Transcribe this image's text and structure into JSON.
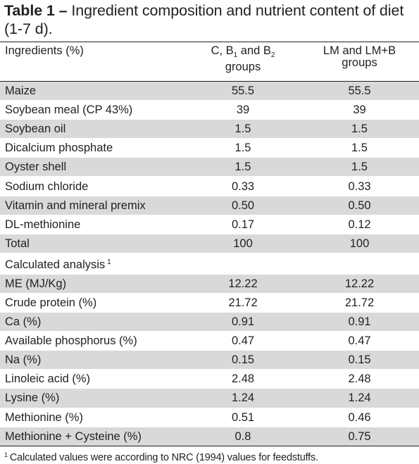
{
  "table": {
    "label": "Table 1 –",
    "caption": "Ingredient composition and nutrient content of diet (1-7 d).",
    "headers": {
      "col1": "Ingredients (%)",
      "col2_pre": "C, B",
      "col2_sub1": "1",
      "col2_mid": " and B",
      "col2_sub2": "2",
      "col2_post": "groups",
      "col3_line1": "LM and LM+B",
      "col3_line2": "groups"
    },
    "rows": [
      {
        "label": "Maize",
        "c": "55.5",
        "lm": "55.5"
      },
      {
        "label": "Soybean meal (CP 43%)",
        "c": "39",
        "lm": "39"
      },
      {
        "label": "Soybean oil",
        "c": "1.5",
        "lm": "1.5"
      },
      {
        "label": "Dicalcium phosphate",
        "c": "1.5",
        "lm": "1.5"
      },
      {
        "label": "Oyster shell",
        "c": "1.5",
        "lm": "1.5"
      },
      {
        "label": "Sodium chloride",
        "c": "0.33",
        "lm": "0.33"
      },
      {
        "label": "Vitamin and mineral premix",
        "c": "0.50",
        "lm": "0.50"
      },
      {
        "label": "DL-methionine",
        "c": "0.17",
        "lm": "0.12"
      },
      {
        "label": "Total",
        "c": "100",
        "lm": "100"
      },
      {
        "label": "Calculated analysis",
        "footnote": "1",
        "c": "",
        "lm": ""
      },
      {
        "label": "ME (MJ/Kg)",
        "c": "12.22",
        "lm": "12.22"
      },
      {
        "label": "Crude protein (%)",
        "c": "21.72",
        "lm": "21.72"
      },
      {
        "label": "Ca (%)",
        "c": "0.91",
        "lm": "0.91"
      },
      {
        "label": "Available phosphorus (%)",
        "c": "0.47",
        "lm": "0.47"
      },
      {
        "label": "Na (%)",
        "c": "0.15",
        "lm": "0.15"
      },
      {
        "label": "Linoleic acid (%)",
        "c": "2.48",
        "lm": "2.48"
      },
      {
        "label": "Lysine (%)",
        "c": "1.24",
        "lm": "1.24"
      },
      {
        "label": "Methionine (%)",
        "c": "0.51",
        "lm": "0.46"
      },
      {
        "label": "Methionine + Cysteine (%)",
        "c": "0.8",
        "lm": "0.75"
      }
    ],
    "footnote": {
      "mark": "1",
      "text": "Calculated values were according to NRC (1994) values for feedstuffs."
    }
  },
  "colors": {
    "shade": "#d9d9da",
    "rule": "#231f20",
    "text": "#231f20"
  }
}
